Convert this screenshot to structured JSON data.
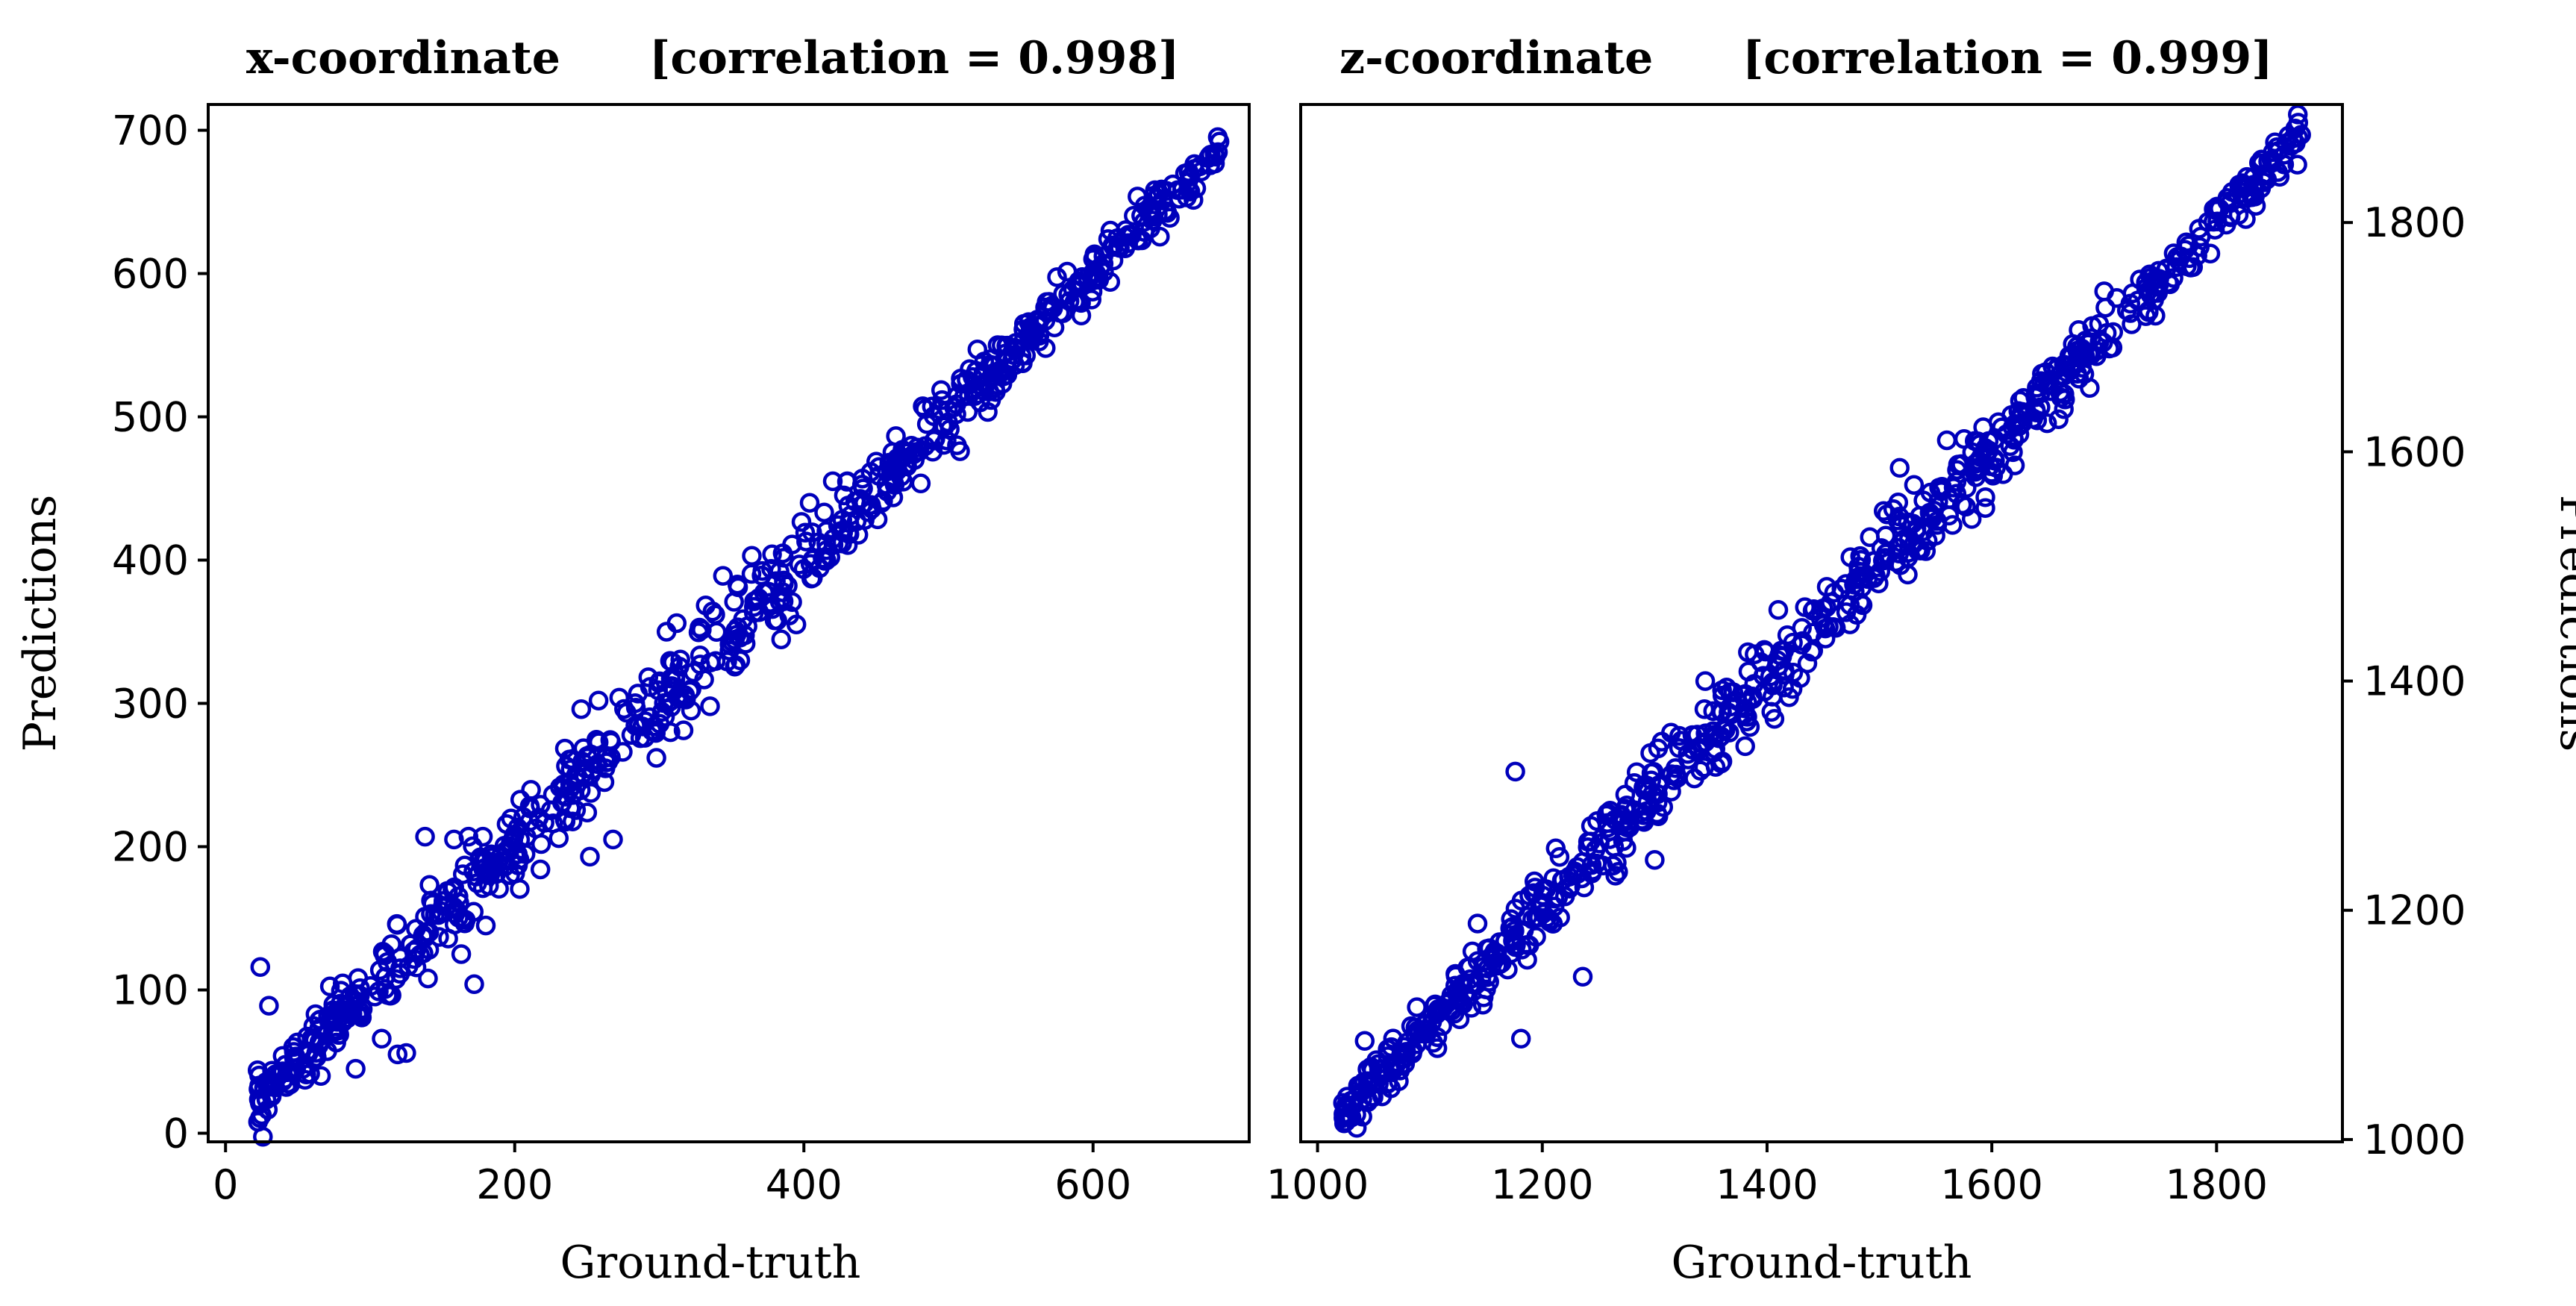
{
  "chart_data": [
    {
      "type": "scatter",
      "title_name": "x-coordinate",
      "title_corr": "[correlation = 0.998]",
      "xlabel": "Ground-truth",
      "ylabel": "Predictions",
      "ylabel_side": "left",
      "xlim": [
        -12,
        708
      ],
      "ylim": [
        -6,
        718
      ],
      "xticks": [
        0,
        200,
        400,
        600
      ],
      "yticks": [
        0,
        100,
        200,
        300,
        400,
        500,
        600,
        700
      ],
      "marker": "open-circle",
      "color": "#0000bb",
      "n_points_main_band": 700,
      "band_range": [
        22,
        688
      ],
      "points": [
        [
          24,
          116
        ],
        [
          30,
          89
        ],
        [
          172,
          104
        ],
        [
          108,
          66
        ],
        [
          119,
          55
        ],
        [
          125,
          56
        ],
        [
          90,
          45
        ],
        [
          66,
          40
        ],
        [
          140,
          108
        ],
        [
          138,
          207
        ],
        [
          158,
          205
        ],
        [
          168,
          207
        ],
        [
          178,
          207
        ],
        [
          163,
          125
        ],
        [
          180,
          145
        ],
        [
          252,
          193
        ],
        [
          268,
          205
        ],
        [
          246,
          296
        ],
        [
          258,
          302
        ],
        [
          290,
          276
        ],
        [
          298,
          262
        ],
        [
          305,
          350
        ],
        [
          312,
          356
        ],
        [
          322,
          295
        ],
        [
          356,
          330
        ],
        [
          344,
          389
        ],
        [
          354,
          383
        ],
        [
          364,
          403
        ],
        [
          378,
          404
        ],
        [
          404,
          440
        ],
        [
          420,
          455
        ],
        [
          430,
          455
        ],
        [
          460,
          463
        ],
        [
          480,
          476
        ],
        [
          508,
          476
        ],
        [
          520,
          547
        ],
        [
          534,
          550
        ],
        [
          590,
          593
        ],
        [
          600,
          610
        ],
        [
          612,
          630
        ],
        [
          648,
          651
        ],
        [
          670,
          673
        ]
      ]
    },
    {
      "type": "scatter",
      "title_name": "z-coordinate",
      "title_corr": "[correlation = 0.999]",
      "xlabel": "Ground-truth",
      "ylabel": "Predictions",
      "ylabel_side": "right",
      "xlim": [
        985,
        1912
      ],
      "ylim": [
        998,
        1903
      ],
      "xticks": [
        1000,
        1200,
        1400,
        1600,
        1800
      ],
      "yticks": [
        1000,
        1200,
        1400,
        1600,
        1800
      ],
      "marker": "open-circle",
      "color": "#0000bb",
      "n_points_main_band": 700,
      "band_range": [
        1022,
        1876
      ],
      "points": [
        [
          1176,
          1321
        ],
        [
          1236,
          1142
        ],
        [
          1181,
          1088
        ],
        [
          1042,
          1086
        ],
        [
          1055,
          1058
        ],
        [
          1036,
          1047
        ],
        [
          1150,
          1131
        ],
        [
          1210,
          1228
        ],
        [
          1212,
          1254
        ],
        [
          1260,
          1262
        ],
        [
          1300,
          1244
        ],
        [
          1345,
          1400
        ],
        [
          1360,
          1392
        ],
        [
          1410,
          1462
        ],
        [
          1418,
          1440
        ],
        [
          1478,
          1478
        ],
        [
          1518,
          1586
        ],
        [
          1560,
          1610
        ],
        [
          1640,
          1656
        ],
        [
          1680,
          1690
        ],
        [
          1700,
          1740
        ],
        [
          1730,
          1732
        ],
        [
          1765,
          1770
        ],
        [
          1820,
          1833
        ],
        [
          1840,
          1855
        ],
        [
          1852,
          1870
        ],
        [
          1870,
          1882
        ]
      ]
    }
  ]
}
